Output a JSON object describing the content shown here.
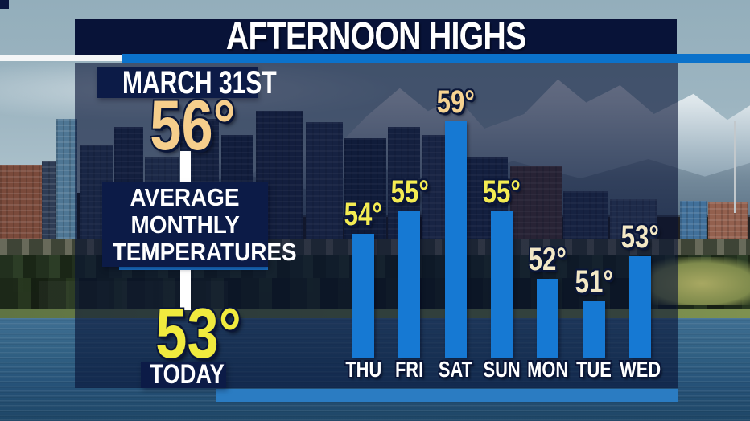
{
  "header": {
    "title": "AFTERNOON HIGHS"
  },
  "left_panel": {
    "date_label": "MARCH 31ST",
    "average_temp": "56°",
    "caption_line1": "AVERAGE",
    "caption_line2": "MONTHLY",
    "caption_line3": "TEMPERATURES",
    "today_temp": "53°",
    "today_label": "TODAY"
  },
  "chart_data": {
    "type": "bar",
    "title": "AFTERNOON HIGHS",
    "categories": [
      "THU",
      "FRI",
      "SAT",
      "SUN",
      "MON",
      "TUE",
      "WED"
    ],
    "values": [
      54,
      55,
      59,
      55,
      52,
      51,
      53
    ],
    "value_labels": [
      "54°",
      "55°",
      "59°",
      "55°",
      "52°",
      "51°",
      "53°"
    ],
    "unit": "°F",
    "baseline_value": 48.5,
    "pixels_per_degree": 28,
    "bar_color": "#1679D3",
    "value_label_colors": [
      "#F4EC52",
      "#F4EC52",
      "#F6D391",
      "#F4EC52",
      "#F3E8C6",
      "#F3E8C6",
      "#F3E8C6"
    ],
    "day_label_color": "#FFFFFF",
    "legend_position": "none",
    "grid": false
  },
  "colors": {
    "header_bg": "#081338",
    "panel_box_bg": "#0C1B47",
    "accent_stripe_blue": "#0B72CB",
    "bottom_strip_blue": "#2B7CC2",
    "average_temp_color": "#F6CE8C",
    "today_temp_color": "#F0EA3E",
    "underline_blue": "#1A74CC"
  }
}
